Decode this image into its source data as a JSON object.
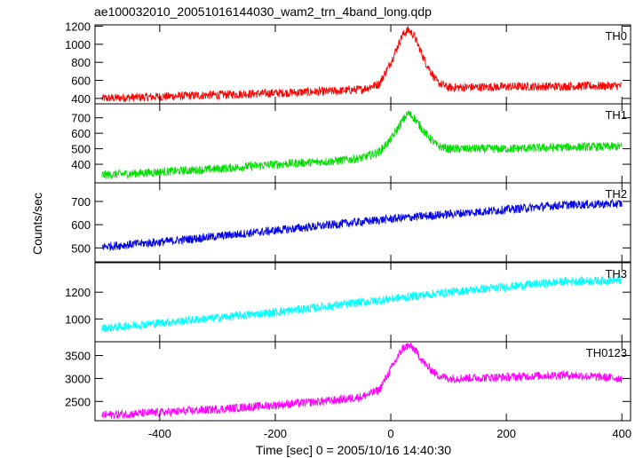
{
  "chart_data": {
    "type": "line",
    "title": "ae100032010_20051016144030_wam2_trn_4band_long.qdp",
    "xlabel": "Time [sec] 0 = 2005/10/16 14:40:30",
    "ylabel": "Counts/sec",
    "xlim": [
      -512,
      415
    ],
    "x_ticks": [
      -400,
      -200,
      0,
      200,
      400
    ],
    "legend": "none",
    "grid": false,
    "panels": [
      {
        "name": "TH0",
        "color": "#ff0000",
        "ylim": [
          340,
          1215
        ],
        "y_ticks": [
          400,
          600,
          800,
          1000,
          1200
        ],
        "x": [
          -500,
          -400,
          -300,
          -200,
          -100,
          -50,
          -20,
          0,
          20,
          30,
          40,
          60,
          80,
          100,
          200,
          300,
          400
        ],
        "y": [
          400,
          420,
          440,
          460,
          480,
          500,
          560,
          800,
          1100,
          1160,
          1100,
          800,
          580,
          520,
          530,
          535,
          540
        ]
      },
      {
        "name": "TH1",
        "color": "#00dd00",
        "ylim": [
          280,
          790
        ],
        "y_ticks": [
          400,
          500,
          600,
          700
        ],
        "x": [
          -500,
          -400,
          -300,
          -200,
          -100,
          -50,
          -20,
          0,
          20,
          30,
          40,
          60,
          80,
          100,
          200,
          300,
          400
        ],
        "y": [
          330,
          350,
          370,
          400,
          420,
          440,
          480,
          560,
          680,
          730,
          700,
          600,
          520,
          500,
          500,
          510,
          515
        ]
      },
      {
        "name": "TH2",
        "color": "#0000ee",
        "ylim": [
          440,
          780
        ],
        "y_ticks": [
          500,
          600,
          700
        ],
        "x": [
          -500,
          -400,
          -300,
          -200,
          -100,
          0,
          100,
          200,
          300,
          400
        ],
        "y": [
          505,
          525,
          550,
          575,
          600,
          625,
          645,
          665,
          685,
          690
        ]
      },
      {
        "name": "TH3",
        "color": "#00ffff",
        "ylim": [
          830,
          1420
        ],
        "y_ticks": [
          1000,
          1200
        ],
        "x": [
          -500,
          -400,
          -300,
          -200,
          -100,
          0,
          100,
          200,
          300,
          400
        ],
        "y": [
          930,
          970,
          1010,
          1050,
          1100,
          1150,
          1200,
          1240,
          1280,
          1290
        ]
      },
      {
        "name": "TH0123",
        "color": "#ff00ff",
        "ylim": [
          2080,
          3800
        ],
        "y_ticks": [
          2500,
          3000,
          3500
        ],
        "x": [
          -500,
          -400,
          -300,
          -200,
          -100,
          -50,
          -20,
          0,
          20,
          30,
          40,
          60,
          80,
          100,
          200,
          300,
          400
        ],
        "y": [
          2200,
          2260,
          2330,
          2420,
          2520,
          2600,
          2750,
          3200,
          3650,
          3720,
          3650,
          3300,
          3080,
          3000,
          3030,
          3080,
          3000
        ]
      }
    ]
  }
}
